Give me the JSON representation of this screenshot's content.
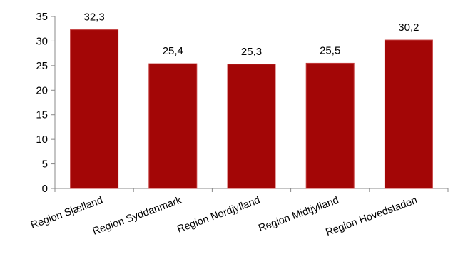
{
  "chart_data": {
    "type": "bar",
    "title": "",
    "xlabel": "",
    "ylabel": "",
    "categories": [
      "Region Sjælland",
      "Region Syddanmark",
      "Region Nordjylland",
      "Region Midtjylland",
      "Region Hovedstaden"
    ],
    "values": [
      32.3,
      25.4,
      25.3,
      25.5,
      30.2
    ],
    "data_labels": [
      "32,3",
      "25,4",
      "25,3",
      "25,5",
      "30,2"
    ],
    "ylim": [
      0,
      35
    ],
    "yticks": [
      0,
      5,
      10,
      15,
      20,
      25,
      30,
      35
    ],
    "ytick_labels": [
      "0",
      "5",
      "10",
      "15",
      "20",
      "25",
      "30",
      "35"
    ],
    "grid": false,
    "legend": "none",
    "colors": {
      "bar": "#a30606",
      "bar_edge": "#c23a3a",
      "axis": "#888888"
    }
  }
}
